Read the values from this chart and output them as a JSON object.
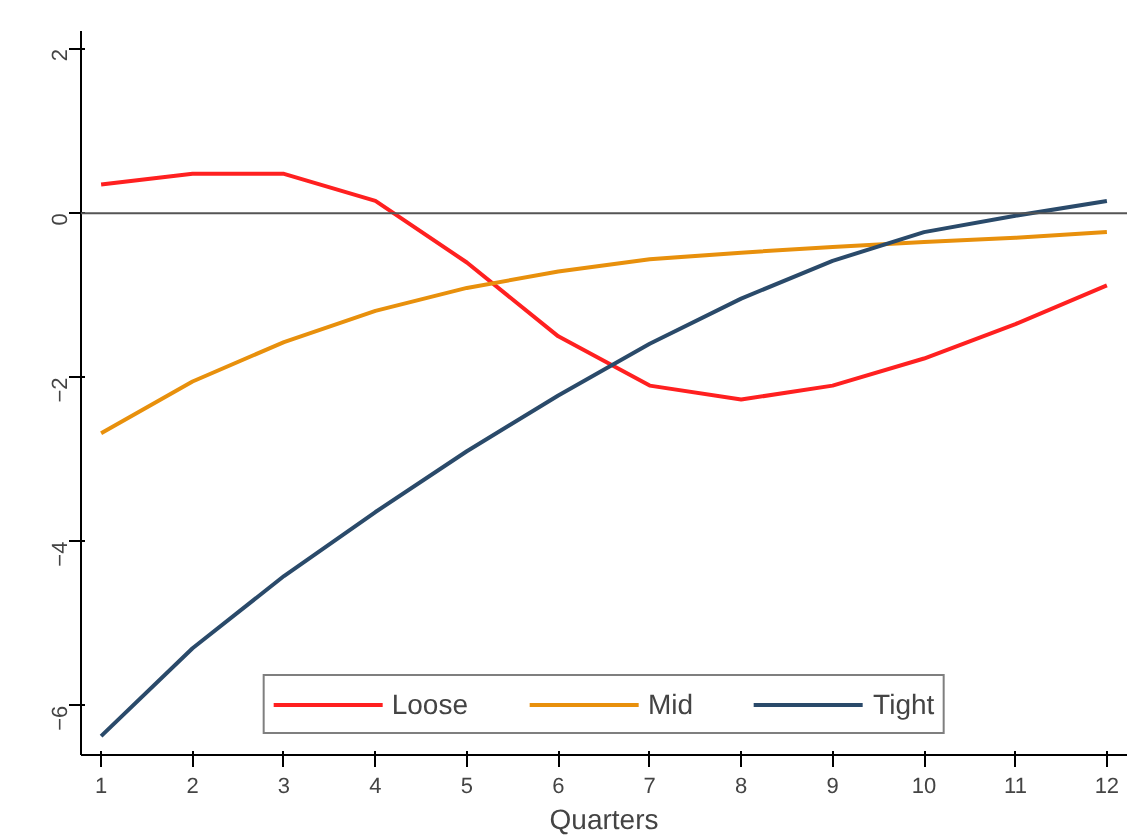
{
  "chart_data": {
    "type": "line",
    "xlabel": "Quarters",
    "x": [
      1,
      2,
      3,
      4,
      5,
      6,
      7,
      8,
      9,
      10,
      11,
      12
    ],
    "series": [
      {
        "name": "Loose",
        "color": "#ff2020",
        "values": [
          0.35,
          0.48,
          0.48,
          0.15,
          -0.6,
          -1.5,
          -2.1,
          -2.27,
          -2.1,
          -1.77,
          -1.35,
          -0.88
        ]
      },
      {
        "name": "Mid",
        "color": "#e8900c",
        "values": [
          -2.68,
          -2.05,
          -1.57,
          -1.19,
          -0.91,
          -0.71,
          -0.56,
          -0.48,
          -0.41,
          -0.35,
          -0.3,
          -0.23
        ]
      },
      {
        "name": "Tight",
        "color": "#2a4a6a",
        "values": [
          -6.37,
          -5.3,
          -4.42,
          -3.64,
          -2.9,
          -2.22,
          -1.59,
          -1.04,
          -0.58,
          -0.23,
          -0.03,
          0.15
        ]
      }
    ],
    "xlim": [
      0.78,
      12.22
    ],
    "ylim": [
      -6.6,
      2.22
    ],
    "xticks": [
      1,
      2,
      3,
      4,
      5,
      6,
      7,
      8,
      9,
      10,
      11,
      12
    ],
    "yticks": [
      -6,
      -4,
      -2,
      0,
      2
    ],
    "ref_lines": [
      {
        "axis": "y",
        "value": 0,
        "color": "#555555"
      }
    ],
    "grid": false,
    "legend": "bottom",
    "marker": "none",
    "line_style": "solid"
  }
}
